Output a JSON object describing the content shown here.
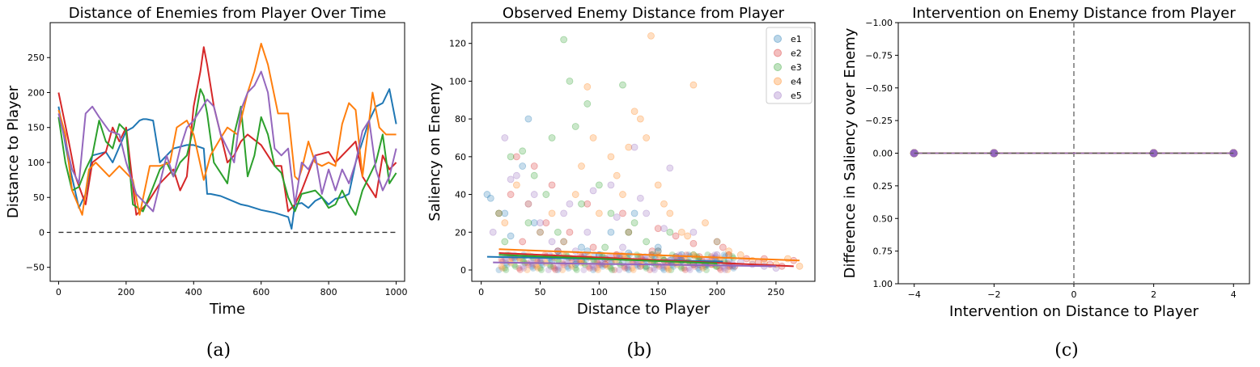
{
  "colors": {
    "e1": "#1f77b4",
    "e2": "#d62728",
    "e3": "#2ca02c",
    "e4": "#ff7f0e",
    "e5": "#9467bd"
  },
  "chart_data": [
    {
      "type": "line",
      "title": "Distance of Enemies from Player Over Time",
      "xlabel": "Time",
      "ylabel": "Distance to Player",
      "xlim": [
        -25,
        1025
      ],
      "ylim": [
        -70,
        300
      ],
      "xticks": [
        0,
        200,
        400,
        600,
        800,
        1000
      ],
      "yticks": [
        -50,
        0,
        50,
        100,
        150,
        200,
        250
      ],
      "caption": "(a)",
      "series": [
        {
          "name": "e1",
          "x": [
            0,
            30,
            60,
            80,
            100,
            140,
            160,
            200,
            220,
            240,
            250,
            260,
            280,
            300,
            340,
            380,
            390,
            400,
            430,
            440,
            450,
            480,
            500,
            540,
            560,
            600,
            620,
            640,
            660,
            680,
            690,
            700,
            720,
            740,
            760,
            780,
            800,
            820,
            840,
            860,
            880,
            900,
            920,
            940,
            960,
            980,
            990,
            1000
          ],
          "values": [
            180,
            100,
            35,
            55,
            110,
            115,
            100,
            145,
            150,
            160,
            162,
            162,
            160,
            100,
            120,
            125,
            125,
            125,
            120,
            55,
            55,
            52,
            48,
            40,
            38,
            32,
            30,
            28,
            25,
            22,
            5,
            40,
            42,
            35,
            45,
            50,
            40,
            48,
            50,
            55,
            100,
            130,
            160,
            180,
            185,
            205,
            180,
            155
          ]
        },
        {
          "name": "e2",
          "x": [
            0,
            30,
            50,
            80,
            100,
            140,
            160,
            180,
            200,
            230,
            260,
            300,
            340,
            360,
            380,
            400,
            420,
            430,
            440,
            460,
            480,
            500,
            520,
            540,
            560,
            600,
            640,
            660,
            680,
            700,
            720,
            760,
            800,
            820,
            860,
            880,
            900,
            940,
            960,
            980,
            1000
          ],
          "values": [
            200,
            130,
            80,
            40,
            100,
            115,
            150,
            130,
            150,
            25,
            40,
            70,
            90,
            60,
            80,
            180,
            230,
            265,
            240,
            180,
            140,
            100,
            110,
            130,
            140,
            125,
            95,
            95,
            30,
            40,
            60,
            110,
            115,
            100,
            120,
            130,
            80,
            50,
            110,
            90,
            100
          ]
        },
        {
          "name": "e3",
          "x": [
            0,
            20,
            40,
            60,
            80,
            100,
            120,
            140,
            160,
            180,
            200,
            220,
            250,
            280,
            300,
            320,
            340,
            360,
            380,
            400,
            420,
            430,
            440,
            460,
            480,
            500,
            520,
            540,
            560,
            580,
            600,
            620,
            640,
            660,
            680,
            700,
            720,
            760,
            780,
            800,
            820,
            840,
            860,
            880,
            900,
            920,
            940,
            960,
            980,
            1000
          ],
          "values": [
            165,
            100,
            60,
            65,
            90,
            110,
            160,
            130,
            120,
            155,
            145,
            40,
            30,
            65,
            90,
            100,
            80,
            100,
            110,
            150,
            205,
            195,
            170,
            100,
            85,
            70,
            140,
            180,
            80,
            110,
            165,
            140,
            95,
            85,
            50,
            30,
            55,
            60,
            50,
            35,
            40,
            60,
            40,
            25,
            60,
            80,
            100,
            140,
            70,
            85
          ]
        },
        {
          "name": "e4",
          "x": [
            0,
            20,
            40,
            70,
            90,
            110,
            150,
            180,
            220,
            240,
            270,
            300,
            330,
            350,
            380,
            400,
            430,
            450,
            480,
            500,
            530,
            560,
            580,
            600,
            620,
            650,
            680,
            700,
            710,
            720,
            740,
            760,
            780,
            800,
            820,
            840,
            860,
            880,
            900,
            930,
            950,
            970,
            1000
          ],
          "values": [
            175,
            140,
            60,
            25,
            90,
            100,
            80,
            95,
            75,
            25,
            95,
            95,
            100,
            150,
            160,
            140,
            75,
            110,
            135,
            150,
            140,
            200,
            230,
            270,
            240,
            170,
            170,
            80,
            75,
            90,
            130,
            100,
            95,
            100,
            95,
            155,
            185,
            175,
            80,
            200,
            150,
            140,
            140
          ]
        },
        {
          "name": "e5",
          "x": [
            0,
            20,
            40,
            60,
            70,
            80,
            100,
            120,
            150,
            180,
            200,
            230,
            260,
            280,
            300,
            320,
            340,
            360,
            380,
            400,
            420,
            440,
            460,
            480,
            500,
            520,
            540,
            560,
            580,
            600,
            620,
            640,
            660,
            680,
            700,
            720,
            740,
            760,
            780,
            800,
            820,
            840,
            860,
            880,
            900,
            920,
            940,
            960,
            980,
            1000
          ],
          "values": [
            170,
            130,
            90,
            70,
            120,
            170,
            180,
            165,
            145,
            140,
            100,
            55,
            40,
            30,
            70,
            110,
            80,
            120,
            150,
            160,
            175,
            190,
            180,
            140,
            120,
            100,
            175,
            200,
            210,
            230,
            200,
            120,
            110,
            120,
            40,
            100,
            90,
            110,
            55,
            90,
            60,
            90,
            70,
            100,
            145,
            160,
            90,
            60,
            80,
            120
          ]
        }
      ],
      "hline": 0
    },
    {
      "type": "scatter",
      "title": "Observed Enemy Distance from Player",
      "xlabel": "Distance to Player",
      "ylabel": "Saliency on Enemy",
      "xlim": [
        -8,
        283
      ],
      "ylim": [
        -6,
        131
      ],
      "xticks": [
        0,
        50,
        100,
        150,
        200,
        250
      ],
      "yticks": [
        0,
        20,
        40,
        60,
        80,
        100,
        120
      ],
      "legend": [
        "e1",
        "e2",
        "e3",
        "e4",
        "e5"
      ],
      "legend_position": "top-right",
      "caption": "(b)",
      "series": [
        {
          "name": "e1",
          "x": [
            5,
            20,
            35,
            40,
            50,
            60,
            70,
            80,
            90,
            100,
            110,
            120,
            130,
            140,
            150,
            160,
            170,
            180,
            190,
            200,
            210,
            8,
            25,
            45,
            65,
            85,
            105,
            125,
            145,
            165,
            185
          ],
          "values": [
            40,
            30,
            55,
            80,
            20,
            5,
            15,
            3,
            10,
            8,
            20,
            4,
            30,
            2,
            12,
            5,
            8,
            3,
            2,
            15,
            5,
            38,
            18,
            25,
            10,
            12,
            6,
            9,
            4,
            7,
            3
          ],
          "trend": [
            [
              5,
              7
            ],
            [
              205,
              4.5
            ]
          ]
        },
        {
          "name": "e2",
          "x": [
            15,
            25,
            35,
            45,
            55,
            65,
            75,
            85,
            95,
            105,
            115,
            125,
            135,
            145,
            155,
            165,
            175,
            185,
            195,
            205,
            215,
            225,
            235,
            245,
            255,
            265,
            30,
            60,
            90,
            120,
            150,
            180,
            210,
            240
          ],
          "values": [
            30,
            40,
            15,
            55,
            25,
            10,
            20,
            5,
            12,
            3,
            8,
            20,
            2,
            10,
            5,
            18,
            4,
            7,
            3,
            12,
            2,
            6,
            4,
            3,
            2,
            5,
            60,
            45,
            35,
            30,
            22,
            14,
            8,
            6
          ],
          "trend": [
            [
              15,
              9
            ],
            [
              265,
              2
            ]
          ]
        },
        {
          "name": "e3",
          "x": [
            15,
            25,
            35,
            45,
            55,
            65,
            70,
            75,
            80,
            90,
            100,
            110,
            120,
            130,
            140,
            150,
            160,
            170,
            180,
            190,
            200,
            20,
            40,
            60,
            85,
            105,
            125,
            145,
            165
          ],
          "values": [
            30,
            60,
            63,
            50,
            40,
            20,
            122,
            100,
            76,
            88,
            45,
            30,
            98,
            25,
            15,
            10,
            20,
            5,
            8,
            3,
            2,
            15,
            25,
            70,
            35,
            12,
            20,
            8,
            4
          ],
          "trend": [
            [
              15,
              8
            ],
            [
              200,
              3.5
            ]
          ]
        },
        {
          "name": "e4",
          "x": [
            20,
            30,
            40,
            50,
            60,
            70,
            80,
            90,
            100,
            110,
            120,
            130,
            135,
            140,
            144,
            150,
            160,
            170,
            180,
            190,
            200,
            210,
            220,
            230,
            240,
            250,
            260,
            270,
            85,
            95,
            115,
            125,
            155,
            175
          ],
          "values": [
            25,
            45,
            35,
            20,
            30,
            15,
            40,
            97,
            30,
            60,
            40,
            84,
            80,
            70,
            124,
            45,
            30,
            20,
            98,
            25,
            15,
            10,
            8,
            5,
            4,
            3,
            6,
            2,
            55,
            70,
            50,
            65,
            35,
            18
          ],
          "trend": [
            [
              15,
              11
            ],
            [
              270,
              5
            ]
          ]
        },
        {
          "name": "e5",
          "x": [
            10,
            20,
            30,
            40,
            50,
            60,
            70,
            80,
            90,
            100,
            110,
            120,
            130,
            140,
            150,
            160,
            170,
            180,
            190,
            200,
            210,
            220,
            230,
            240,
            250,
            25,
            45,
            75,
            95,
            115,
            135,
            155
          ],
          "values": [
            20,
            70,
            50,
            35,
            25,
            15,
            30,
            10,
            20,
            8,
            45,
            12,
            65,
            30,
            10,
            54,
            5,
            20,
            3,
            8,
            2,
            4,
            3,
            2,
            1,
            48,
            40,
            35,
            42,
            28,
            38,
            22
          ],
          "trend": [
            [
              10,
              4
            ],
            [
              250,
              2
            ]
          ]
        }
      ]
    },
    {
      "type": "line",
      "title": "Intervention on Enemy Distance from Player",
      "xlabel": "Intervention on Distance to Player",
      "ylabel": "Difference in Saliency over Enemy",
      "xlim": [
        -4.4,
        4.4
      ],
      "ylim": [
        -1.0,
        1.0
      ],
      "y_inverted": true,
      "xticks": [
        -4,
        -2,
        0,
        2,
        4
      ],
      "yticks": [
        -1.0,
        -0.75,
        -0.5,
        -0.25,
        0.0,
        0.25,
        0.5,
        0.75,
        1.0
      ],
      "ytick_labels": [
        "−1.00",
        "−0.75",
        "−0.50",
        "−0.25",
        "0.00",
        "0.25",
        "0.50",
        "0.75",
        "1.00"
      ],
      "xtick_labels": [
        "−4",
        "−2",
        "0",
        "2",
        "4"
      ],
      "caption": "(c)",
      "series": [
        {
          "name": "e1",
          "x": [
            -4,
            -2,
            2,
            4
          ],
          "values": [
            0,
            0,
            0,
            0
          ]
        },
        {
          "name": "e2",
          "x": [
            -4,
            -2,
            2,
            4
          ],
          "values": [
            0,
            0,
            0,
            0
          ]
        },
        {
          "name": "e3",
          "x": [
            -4,
            -2,
            2,
            4
          ],
          "values": [
            0,
            0,
            0,
            0
          ]
        },
        {
          "name": "e4",
          "x": [
            -4,
            -2,
            2,
            4
          ],
          "values": [
            0,
            0,
            0,
            0
          ]
        },
        {
          "name": "e5",
          "x": [
            -4,
            -2,
            2,
            4
          ],
          "values": [
            0,
            0,
            0,
            0
          ]
        }
      ],
      "vline": 0,
      "hline": 0
    }
  ]
}
